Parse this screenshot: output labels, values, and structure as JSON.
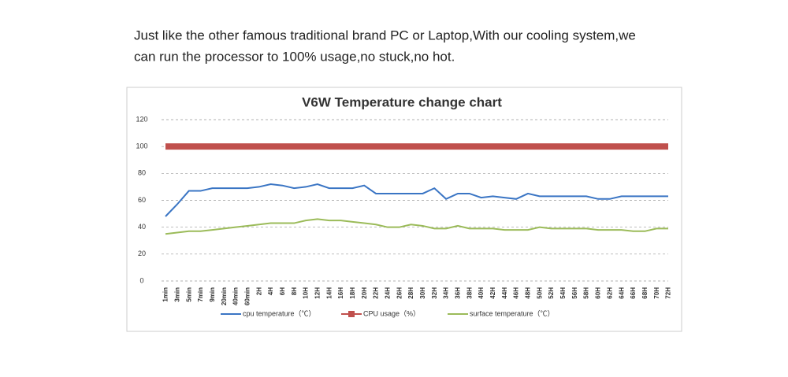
{
  "intro": [
    "Just like the other famous traditional brand PC or Laptop,With our cooling system,we",
    "can run the processor to 100% usage,no stuck,no hot."
  ],
  "chart_data": {
    "type": "line",
    "title": "V6W Temperature change chart",
    "categories": [
      "1min",
      "3min",
      "5min",
      "7min",
      "9min",
      "20min",
      "40min",
      "60min",
      "2H",
      "4H",
      "6H",
      "8H",
      "10H",
      "12H",
      "14H",
      "16H",
      "18H",
      "20H",
      "22H",
      "24H",
      "26H",
      "28H",
      "30H",
      "32H",
      "34H",
      "36H",
      "38H",
      "40H",
      "42H",
      "44H",
      "46H",
      "48H",
      "50H",
      "52H",
      "54H",
      "56H",
      "58H",
      "60H",
      "62H",
      "64H",
      "66H",
      "68H",
      "70H",
      "72H"
    ],
    "series": [
      {
        "name": "cpu temperature（℃）",
        "color": "#3a75c4",
        "values": [
          48,
          57,
          67,
          67,
          69,
          69,
          69,
          69,
          70,
          72,
          71,
          69,
          70,
          72,
          69,
          69,
          69,
          71,
          65,
          65,
          65,
          65,
          65,
          69,
          61,
          65,
          65,
          62,
          63,
          62,
          61,
          65,
          63,
          63,
          63,
          63,
          63,
          61,
          61,
          63,
          63,
          63,
          63,
          63
        ]
      },
      {
        "name": "CPU usage（%）",
        "color": "#c0504d",
        "values": [
          100,
          100,
          100,
          100,
          100,
          100,
          100,
          100,
          100,
          100,
          100,
          100,
          100,
          100,
          100,
          100,
          100,
          100,
          100,
          100,
          100,
          100,
          100,
          100,
          100,
          100,
          100,
          100,
          100,
          100,
          100,
          100,
          100,
          100,
          100,
          100,
          100,
          100,
          100,
          100,
          100,
          100,
          100,
          100
        ]
      },
      {
        "name": "surface temperature（℃）",
        "color": "#9bbb59",
        "values": [
          35,
          36,
          37,
          37,
          38,
          39,
          40,
          41,
          42,
          43,
          43,
          43,
          45,
          46,
          45,
          45,
          44,
          43,
          42,
          40,
          40,
          42,
          41,
          39,
          39,
          41,
          39,
          39,
          39,
          38,
          38,
          38,
          40,
          39,
          39,
          39,
          39,
          38,
          38,
          38,
          37,
          37,
          39,
          39
        ]
      }
    ],
    "ylim": [
      0,
      120
    ],
    "yticks": [
      0,
      20,
      40,
      60,
      80,
      100,
      120
    ],
    "grid": true,
    "legend": "bottom"
  }
}
